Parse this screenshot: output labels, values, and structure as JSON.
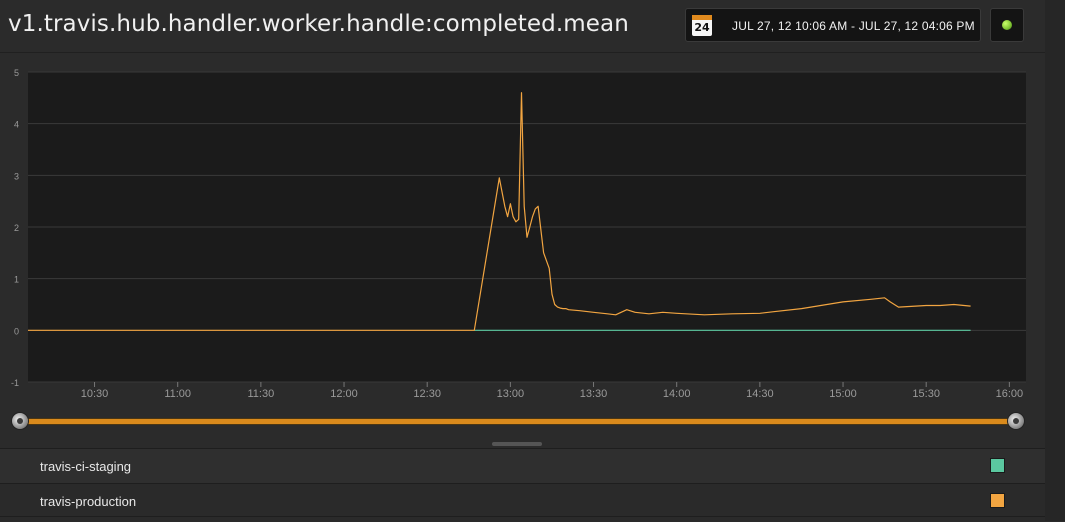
{
  "header": {
    "title": "v1.travis.hub.handler.worker.handle:completed.mean",
    "calendar_day": "24",
    "date_range": "JUL 27, 12 10:06 AM - JUL 27, 12 04:06 PM",
    "live_indicator_color": "#7dc232"
  },
  "colors": {
    "plot_background": "#1b1b1b",
    "gridline": "#3a3a3a",
    "staging": "#5bc8a0",
    "production": "#f2a541",
    "slider": "#d98a1c"
  },
  "legend": {
    "items": [
      {
        "label": "travis-ci-staging",
        "color": "#5bc8a0"
      },
      {
        "label": "travis-production",
        "color": "#f2a541"
      }
    ]
  },
  "chart_data": {
    "type": "line",
    "y_ticks": [
      "5",
      "4",
      "3",
      "2",
      "1",
      "0",
      "-1"
    ],
    "ylim": [
      -1,
      5
    ],
    "x_ticks": [
      "10:30",
      "11:00",
      "11:30",
      "12:00",
      "12:30",
      "13:00",
      "13:30",
      "14:00",
      "14:30",
      "15:00",
      "15:30",
      "16:00"
    ],
    "xlim": [
      "10:06",
      "16:06"
    ],
    "grid": true,
    "series": [
      {
        "name": "travis-ci-staging",
        "color": "#5bc8a0",
        "x": [
          "12:47",
          "15:46"
        ],
        "y": [
          0.0,
          0.0
        ]
      },
      {
        "name": "travis-production",
        "color": "#f2a541",
        "x": [
          "10:06",
          "12:47",
          "12:56",
          "12:58",
          "12:59",
          "13:00",
          "13:01",
          "13:02",
          "13:03",
          "13:04",
          "13:05",
          "13:06",
          "13:07",
          "13:08",
          "13:09",
          "13:10",
          "13:12",
          "13:14",
          "13:15",
          "13:16",
          "13:17",
          "13:18",
          "13:19",
          "13:20",
          "13:21",
          "13:25",
          "13:30",
          "13:35",
          "13:38",
          "13:42",
          "13:45",
          "13:50",
          "13:55",
          "14:00",
          "14:10",
          "14:20",
          "14:30",
          "14:35",
          "14:45",
          "15:00",
          "15:10",
          "15:15",
          "15:17",
          "15:20",
          "15:30",
          "15:35",
          "15:40",
          "15:46"
        ],
        "y": [
          0.0,
          0.0,
          2.95,
          2.4,
          2.2,
          2.45,
          2.2,
          2.1,
          2.15,
          4.6,
          2.4,
          1.8,
          2.0,
          2.2,
          2.35,
          2.4,
          1.5,
          1.2,
          0.7,
          0.5,
          0.45,
          0.43,
          0.42,
          0.42,
          0.4,
          0.38,
          0.35,
          0.32,
          0.3,
          0.4,
          0.35,
          0.32,
          0.35,
          0.33,
          0.3,
          0.32,
          0.33,
          0.36,
          0.42,
          0.55,
          0.6,
          0.63,
          0.55,
          0.45,
          0.48,
          0.48,
          0.5,
          0.47
        ]
      }
    ]
  }
}
